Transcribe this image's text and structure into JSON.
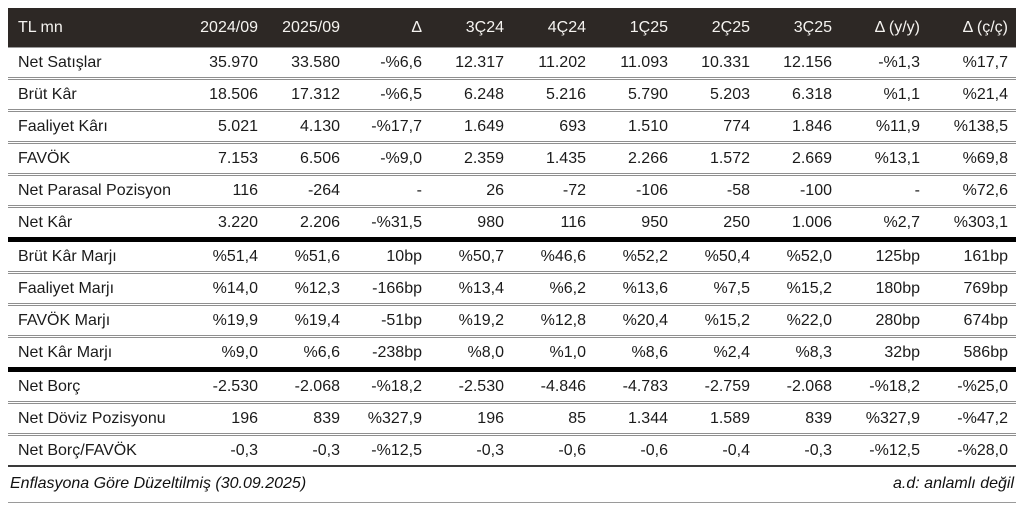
{
  "colors": {
    "header_bg": "#2d2825",
    "header_text": "#f5f3f0",
    "body_text": "#1b1b1b",
    "row_divider": "#8f8f8f",
    "section_divider": "#000000"
  },
  "footer": {
    "left_note": "Enflasyona Göre Düzeltilmiş (30.09.2025)",
    "right_note": "a.d: anlamlı değil"
  },
  "chart_data": {
    "type": "table",
    "unit_label": "TL mn",
    "columns": [
      "2024/09",
      "2025/09",
      "Δ",
      "3Ç24",
      "4Ç24",
      "1Ç25",
      "2Ç25",
      "3Ç25",
      "Δ (y/y)",
      "Δ (ç/ç)"
    ],
    "sections": [
      {
        "name": "income-statement",
        "rows": [
          {
            "label": "Net Satışlar",
            "values": [
              "35.970",
              "33.580",
              "-%6,6",
              "12.317",
              "11.202",
              "11.093",
              "10.331",
              "12.156",
              "-%1,3",
              "%17,7"
            ]
          },
          {
            "label": "Brüt Kâr",
            "values": [
              "18.506",
              "17.312",
              "-%6,5",
              "6.248",
              "5.216",
              "5.790",
              "5.203",
              "6.318",
              "%1,1",
              "%21,4"
            ]
          },
          {
            "label": "Faaliyet Kârı",
            "values": [
              "5.021",
              "4.130",
              "-%17,7",
              "1.649",
              "693",
              "1.510",
              "774",
              "1.846",
              "%11,9",
              "%138,5"
            ]
          },
          {
            "label": "FAVÖK",
            "values": [
              "7.153",
              "6.506",
              "-%9,0",
              "2.359",
              "1.435",
              "2.266",
              "1.572",
              "2.669",
              "%13,1",
              "%69,8"
            ]
          },
          {
            "label": "Net Parasal Pozisyon",
            "values": [
              "116",
              "-264",
              "-",
              "26",
              "-72",
              "-106",
              "-58",
              "-100",
              "-",
              "%72,6"
            ]
          },
          {
            "label": "Net Kâr",
            "values": [
              "3.220",
              "2.206",
              "-%31,5",
              "980",
              "116",
              "950",
              "250",
              "1.006",
              "%2,7",
              "%303,1"
            ]
          }
        ]
      },
      {
        "name": "margins",
        "rows": [
          {
            "label": "Brüt Kâr Marjı",
            "values": [
              "%51,4",
              "%51,6",
              "10bp",
              "%50,7",
              "%46,6",
              "%52,2",
              "%50,4",
              "%52,0",
              "125bp",
              "161bp"
            ]
          },
          {
            "label": "Faaliyet Marjı",
            "values": [
              "%14,0",
              "%12,3",
              "-166bp",
              "%13,4",
              "%6,2",
              "%13,6",
              "%7,5",
              "%15,2",
              "180bp",
              "769bp"
            ]
          },
          {
            "label": "FAVÖK Marjı",
            "values": [
              "%19,9",
              "%19,4",
              "-51bp",
              "%19,2",
              "%12,8",
              "%20,4",
              "%15,2",
              "%22,0",
              "280bp",
              "674bp"
            ]
          },
          {
            "label": "Net Kâr Marjı",
            "values": [
              "%9,0",
              "%6,6",
              "-238bp",
              "%8,0",
              "%1,0",
              "%8,6",
              "%2,4",
              "%8,3",
              "32bp",
              "586bp"
            ]
          }
        ]
      },
      {
        "name": "net-debt",
        "rows": [
          {
            "label": "Net Borç",
            "values": [
              "-2.530",
              "-2.068",
              "-%18,2",
              "-2.530",
              "-4.846",
              "-4.783",
              "-2.759",
              "-2.068",
              "-%18,2",
              "-%25,0"
            ]
          },
          {
            "label": "Net Döviz Pozisyonu",
            "values": [
              "196",
              "839",
              "%327,9",
              "196",
              "85",
              "1.344",
              "1.589",
              "839",
              "%327,9",
              "-%47,2"
            ]
          },
          {
            "label": "Net Borç/FAVÖK",
            "values": [
              "-0,3",
              "-0,3",
              "-%12,5",
              "-0,3",
              "-0,6",
              "-0,6",
              "-0,4",
              "-0,3",
              "-%12,5",
              "-%28,0"
            ]
          }
        ]
      }
    ]
  }
}
